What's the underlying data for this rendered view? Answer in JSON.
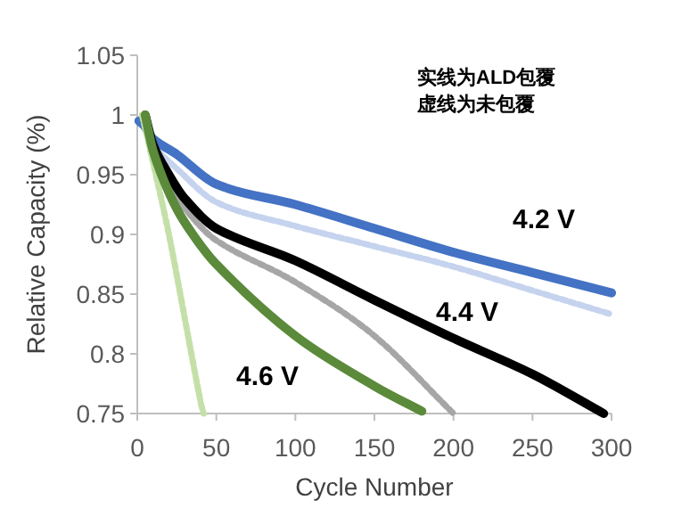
{
  "chart_data": {
    "type": "line",
    "xlabel": "Cycle Number",
    "ylabel": "Relative Capacity (%)",
    "xlim": [
      0,
      300
    ],
    "ylim": [
      0.75,
      1.05
    ],
    "xticks": [
      0,
      50,
      100,
      150,
      200,
      250,
      300
    ],
    "yticks": [
      {
        "value": 0.75,
        "label": "0.75"
      },
      {
        "value": 0.8,
        "label": "0.8"
      },
      {
        "value": 0.85,
        "label": "0.85"
      },
      {
        "value": 0.9,
        "label": "0.9"
      },
      {
        "value": 0.95,
        "label": "0.95"
      },
      {
        "value": 1,
        "label": "1"
      },
      {
        "value": 1.05,
        "label": "1.05"
      }
    ],
    "series": [
      {
        "color": "#c5d3ee",
        "line_style": "dashed",
        "x": [
          1,
          5,
          10,
          25,
          50,
          100,
          150,
          200,
          250,
          300
        ],
        "values": [
          0.995,
          0.99,
          0.975,
          0.955,
          0.927,
          0.907,
          0.89,
          0.873,
          0.853,
          0.833
        ]
      },
      {
        "color": "#4472c4",
        "line_style": "solid",
        "x": [
          1,
          5,
          10,
          25,
          50,
          100,
          150,
          200,
          250,
          300
        ],
        "values": [
          0.995,
          0.99,
          0.98,
          0.967,
          0.942,
          0.925,
          0.905,
          0.885,
          0.868,
          0.851
        ]
      },
      {
        "color": "#a6a6a6",
        "line_style": "dashed",
        "x": [
          5,
          10,
          20,
          30,
          50,
          100,
          150,
          200
        ],
        "values": [
          1,
          0.972,
          0.945,
          0.922,
          0.895,
          0.86,
          0.815,
          0.75
        ]
      },
      {
        "color": "#000000",
        "line_style": "solid",
        "x": [
          5,
          10,
          20,
          30,
          50,
          100,
          150,
          200,
          250,
          295
        ],
        "values": [
          1,
          0.975,
          0.95,
          0.93,
          0.905,
          0.878,
          0.845,
          0.813,
          0.783,
          0.75
        ]
      },
      {
        "color": "#c4e0a8",
        "line_style": "dashed",
        "x": [
          3,
          10,
          20,
          30,
          40,
          42
        ],
        "values": [
          1,
          0.96,
          0.9,
          0.83,
          0.76,
          0.75
        ]
      },
      {
        "color": "#5a8a3a",
        "line_style": "solid",
        "x": [
          5,
          10,
          20,
          30,
          50,
          100,
          150,
          180
        ],
        "values": [
          1,
          0.97,
          0.935,
          0.91,
          0.875,
          0.815,
          0.773,
          0.752
        ]
      }
    ],
    "annotations": [
      "4.2 V",
      "4.4 V",
      "4.6 V",
      "实线为ALD包覆",
      "虚线为未包覆"
    ]
  }
}
